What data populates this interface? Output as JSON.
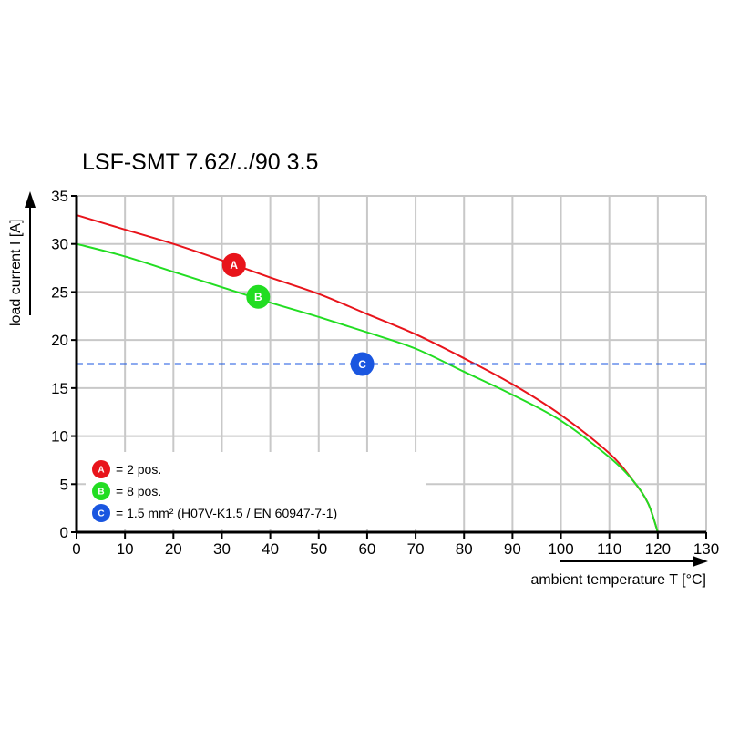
{
  "chart_data": {
    "type": "line",
    "title": "LSF-SMT 7.62/../90 3.5",
    "xlabel": "ambient temperature T [°C]",
    "ylabel": "load current I [A]",
    "xlim": [
      0,
      130
    ],
    "ylim": [
      0,
      35
    ],
    "xticks": [
      "0",
      "10",
      "20",
      "30",
      "40",
      "50",
      "60",
      "70",
      "80",
      "90",
      "100",
      "110",
      "120",
      "130"
    ],
    "yticks": [
      "0",
      "5",
      "10",
      "15",
      "20",
      "25",
      "30",
      "35"
    ],
    "grid": true,
    "series": [
      {
        "name": "A",
        "color": "#e8141b",
        "marker_x": 32.5,
        "marker_y": 27.8,
        "x": [
          0,
          10,
          20,
          30,
          40,
          50,
          60,
          70,
          80,
          90,
          100,
          110,
          115,
          118,
          120
        ],
        "y": [
          33,
          31.5,
          30,
          28.3,
          26.5,
          24.8,
          22.7,
          20.6,
          18.1,
          15.4,
          12.2,
          8.2,
          5.3,
          3,
          0
        ]
      },
      {
        "name": "B",
        "color": "#22dd22",
        "marker_x": 37.5,
        "marker_y": 24.5,
        "x": [
          0,
          10,
          20,
          30,
          40,
          50,
          60,
          70,
          80,
          90,
          100,
          110,
          115,
          118,
          120
        ],
        "y": [
          30,
          28.7,
          27.1,
          25.5,
          23.9,
          22.4,
          20.8,
          19.1,
          16.7,
          14.3,
          11.6,
          7.8,
          5.3,
          3,
          0
        ]
      },
      {
        "name": "C",
        "color": "#1a56e0",
        "style": "dashed",
        "marker_x": 59,
        "marker_y": 17.5,
        "x": [
          0,
          130
        ],
        "y": [
          17.5,
          17.5
        ]
      }
    ],
    "legend": {
      "placement": "bottom-left",
      "entries": [
        {
          "badge": "A",
          "text": "= 2 pos."
        },
        {
          "badge": "B",
          "text": "= 8 pos."
        },
        {
          "badge": "C",
          "text": "= 1.5 mm² (H07V-K1.5 / EN 60947-7-1)"
        }
      ]
    }
  }
}
